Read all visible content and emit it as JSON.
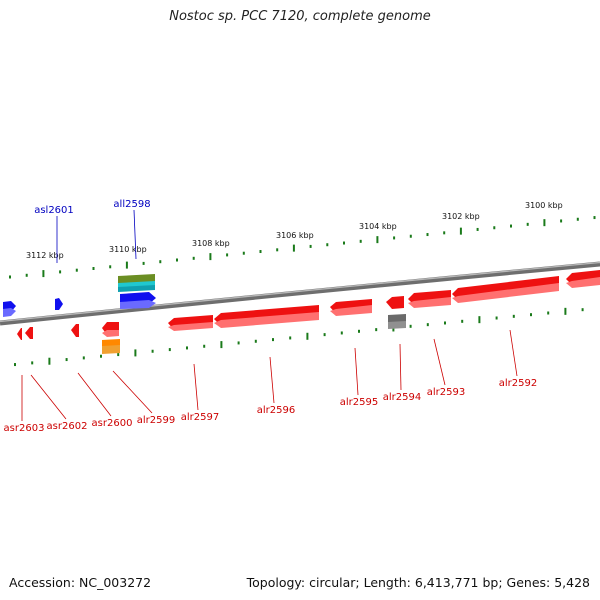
{
  "title": "Nostoc sp. PCC 7120, complete genome",
  "footer": {
    "accession": "Accession: NC_003272",
    "stats": "Topology: circular; Length: 6,413,771 bp; Genes: 5,428"
  },
  "colors": {
    "forward_label": "#0000c0",
    "reverse_label": "#cc0000",
    "tick": "#1a7a1a",
    "backbone": "#808080"
  },
  "scale_labels": [
    {
      "text": "3112 kbp"
    },
    {
      "text": "3110 kbp"
    },
    {
      "text": "3108 kbp"
    },
    {
      "text": "3106 kbp"
    },
    {
      "text": "3104 kbp"
    },
    {
      "text": "3102 kbp"
    },
    {
      "text": "3100 kbp"
    }
  ],
  "forward_genes": [
    {
      "label": "asl2601",
      "color": "blue"
    },
    {
      "label": "all2598",
      "color": "blue"
    }
  ],
  "reverse_genes": [
    {
      "label": "asr2603",
      "color": "red"
    },
    {
      "label": "asr2602",
      "color": "red"
    },
    {
      "label": "asr2600",
      "color": "red"
    },
    {
      "label": "alr2599",
      "color": "red"
    },
    {
      "label": "alr2597",
      "color": "red"
    },
    {
      "label": "alr2596",
      "color": "red"
    },
    {
      "label": "alr2595",
      "color": "red"
    },
    {
      "label": "alr2594",
      "color": "red"
    },
    {
      "label": "alr2593",
      "color": "red"
    },
    {
      "label": "alr2592",
      "color": "red"
    }
  ]
}
